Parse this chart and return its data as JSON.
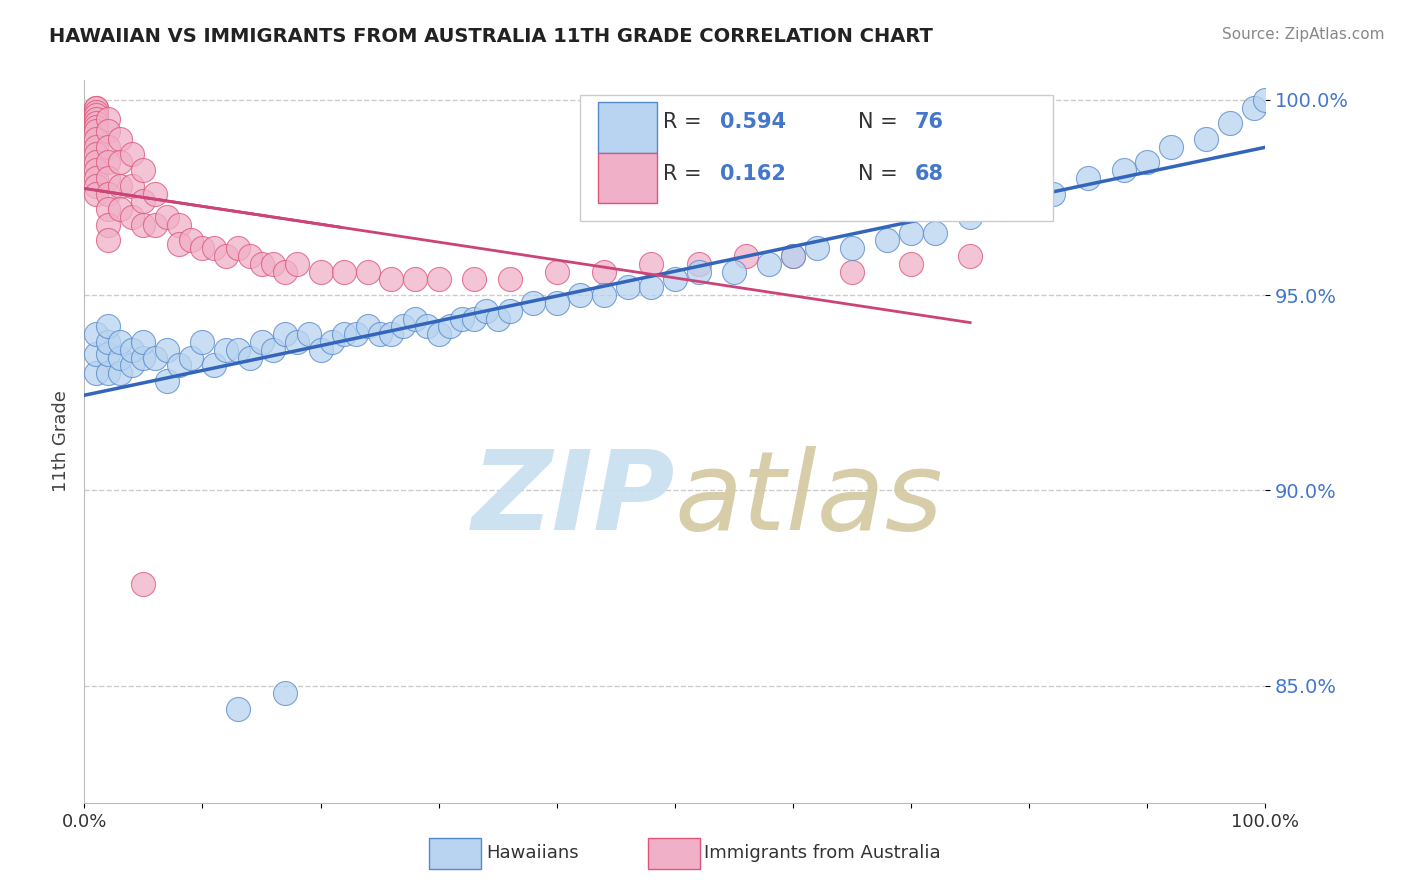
{
  "title": "HAWAIIAN VS IMMIGRANTS FROM AUSTRALIA 11TH GRADE CORRELATION CHART",
  "source": "Source: ZipAtlas.com",
  "ylabel": "11th Grade",
  "xlim": [
    0.0,
    1.0
  ],
  "ylim": [
    0.82,
    1.005
  ],
  "yticks": [
    0.85,
    0.9,
    0.95,
    1.0
  ],
  "ytick_labels": [
    "85.0%",
    "90.0%",
    "95.0%",
    "100.0%"
  ],
  "xticks": [
    0.0,
    0.1,
    0.2,
    0.3,
    0.4,
    0.5,
    0.6,
    0.7,
    0.8,
    0.9,
    1.0
  ],
  "blue_color": "#b8d4f0",
  "pink_color": "#f0b0c8",
  "blue_edge_color": "#5588cc",
  "pink_edge_color": "#dd5577",
  "blue_line_color": "#3366bb",
  "pink_line_color": "#cc4477",
  "hawaiians_x": [
    0.01,
    0.01,
    0.01,
    0.02,
    0.02,
    0.02,
    0.02,
    0.03,
    0.03,
    0.03,
    0.04,
    0.04,
    0.05,
    0.05,
    0.06,
    0.07,
    0.07,
    0.08,
    0.09,
    0.1,
    0.11,
    0.12,
    0.13,
    0.14,
    0.15,
    0.16,
    0.17,
    0.18,
    0.19,
    0.2,
    0.21,
    0.22,
    0.23,
    0.24,
    0.25,
    0.26,
    0.27,
    0.28,
    0.29,
    0.3,
    0.31,
    0.32,
    0.33,
    0.34,
    0.35,
    0.36,
    0.38,
    0.4,
    0.42,
    0.44,
    0.46,
    0.48,
    0.5,
    0.52,
    0.55,
    0.58,
    0.6,
    0.62,
    0.65,
    0.68,
    0.7,
    0.72,
    0.75,
    0.78,
    0.8,
    0.82,
    0.85,
    0.88,
    0.9,
    0.92,
    0.95,
    0.97,
    0.99,
    1.0,
    0.13,
    0.17
  ],
  "hawaiians_y": [
    0.93,
    0.935,
    0.94,
    0.93,
    0.935,
    0.938,
    0.942,
    0.93,
    0.934,
    0.938,
    0.932,
    0.936,
    0.934,
    0.938,
    0.934,
    0.928,
    0.936,
    0.932,
    0.934,
    0.938,
    0.932,
    0.936,
    0.936,
    0.934,
    0.938,
    0.936,
    0.94,
    0.938,
    0.94,
    0.936,
    0.938,
    0.94,
    0.94,
    0.942,
    0.94,
    0.94,
    0.942,
    0.944,
    0.942,
    0.94,
    0.942,
    0.944,
    0.944,
    0.946,
    0.944,
    0.946,
    0.948,
    0.948,
    0.95,
    0.95,
    0.952,
    0.952,
    0.954,
    0.956,
    0.956,
    0.958,
    0.96,
    0.962,
    0.962,
    0.964,
    0.966,
    0.966,
    0.97,
    0.972,
    0.974,
    0.976,
    0.98,
    0.982,
    0.984,
    0.988,
    0.99,
    0.994,
    0.998,
    1.0,
    0.844,
    0.848
  ],
  "immigrants_x": [
    0.01,
    0.01,
    0.01,
    0.01,
    0.01,
    0.01,
    0.01,
    0.01,
    0.01,
    0.01,
    0.01,
    0.01,
    0.01,
    0.01,
    0.01,
    0.01,
    0.02,
    0.02,
    0.02,
    0.02,
    0.02,
    0.02,
    0.02,
    0.02,
    0.02,
    0.03,
    0.03,
    0.03,
    0.03,
    0.04,
    0.04,
    0.04,
    0.05,
    0.05,
    0.05,
    0.06,
    0.06,
    0.07,
    0.08,
    0.08,
    0.09,
    0.1,
    0.11,
    0.12,
    0.13,
    0.14,
    0.15,
    0.16,
    0.17,
    0.18,
    0.2,
    0.22,
    0.24,
    0.26,
    0.28,
    0.3,
    0.33,
    0.36,
    0.4,
    0.44,
    0.48,
    0.52,
    0.56,
    0.6,
    0.65,
    0.7,
    0.75,
    0.05
  ],
  "immigrants_y": [
    0.998,
    0.998,
    0.997,
    0.996,
    0.995,
    0.994,
    0.993,
    0.992,
    0.99,
    0.988,
    0.986,
    0.984,
    0.982,
    0.98,
    0.978,
    0.976,
    0.995,
    0.992,
    0.988,
    0.984,
    0.98,
    0.976,
    0.972,
    0.968,
    0.964,
    0.99,
    0.984,
    0.978,
    0.972,
    0.986,
    0.978,
    0.97,
    0.982,
    0.974,
    0.968,
    0.976,
    0.968,
    0.97,
    0.968,
    0.963,
    0.964,
    0.962,
    0.962,
    0.96,
    0.962,
    0.96,
    0.958,
    0.958,
    0.956,
    0.958,
    0.956,
    0.956,
    0.956,
    0.954,
    0.954,
    0.954,
    0.954,
    0.954,
    0.956,
    0.956,
    0.958,
    0.958,
    0.96,
    0.96,
    0.956,
    0.958,
    0.96,
    0.876
  ],
  "legend_r1": "0.594",
  "legend_n1": "76",
  "legend_r2": "0.162",
  "legend_n2": "68",
  "watermark_zip_color": "#c8dff0",
  "watermark_atlas_color": "#d4c8a0"
}
